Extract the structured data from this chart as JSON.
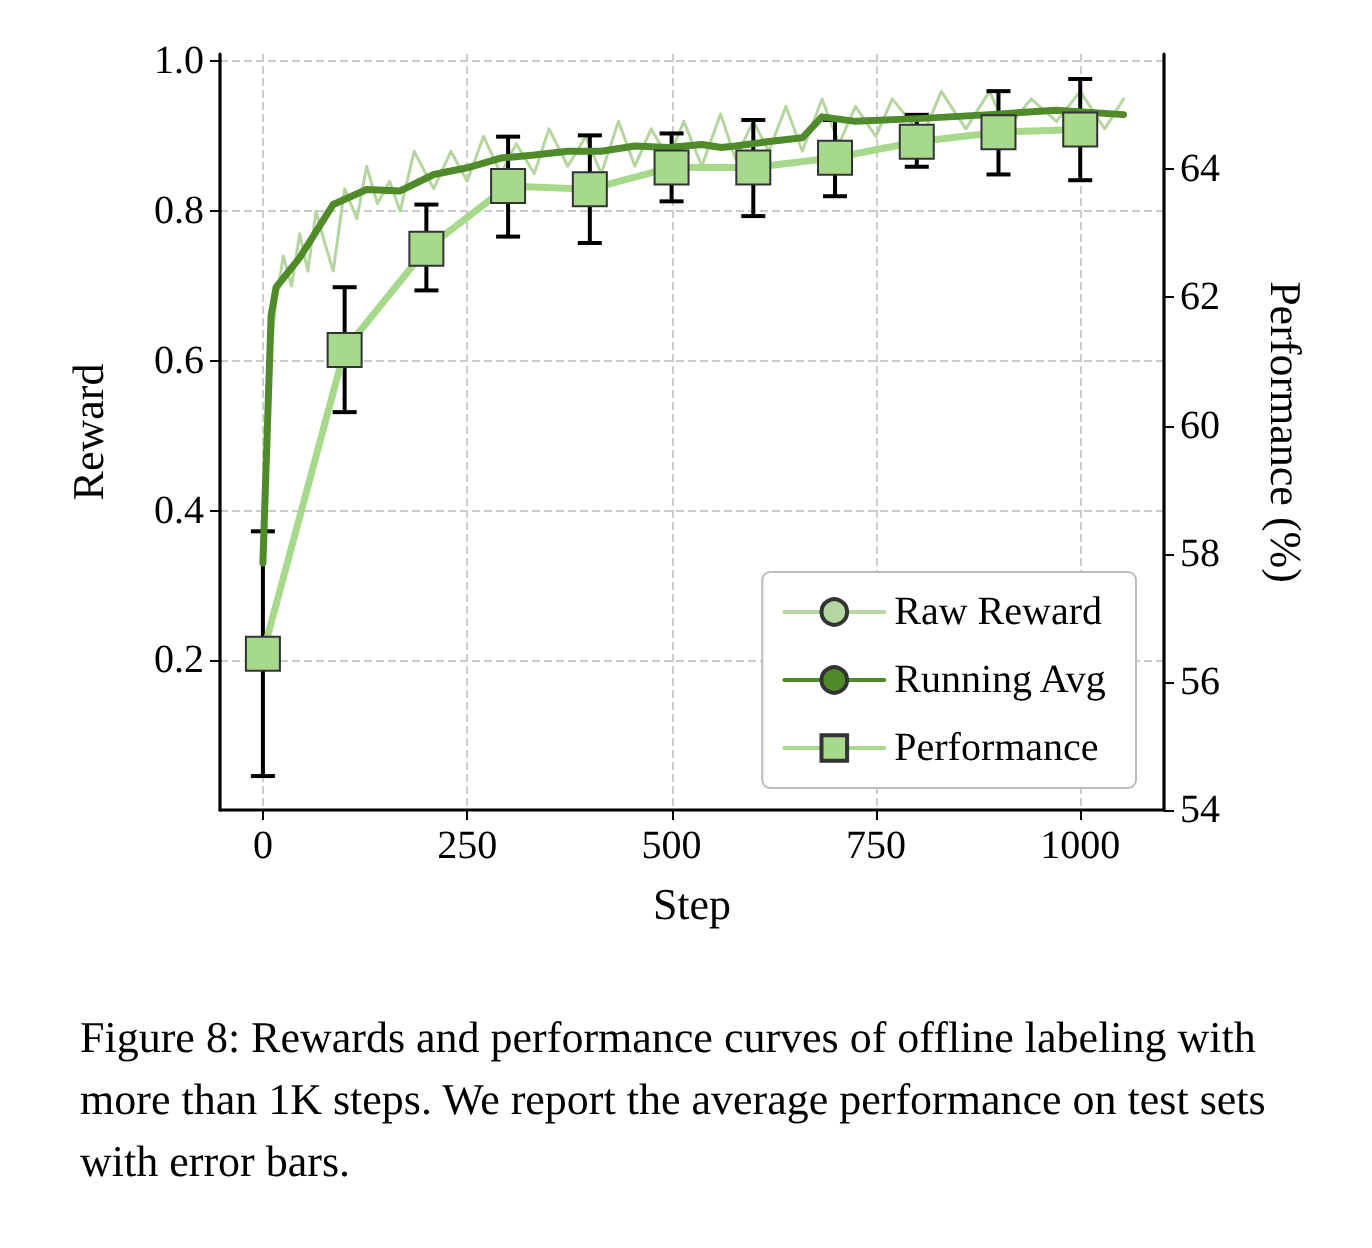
{
  "chart_data": {
    "type": "line",
    "xlabel": "Step",
    "ylabel": "Reward",
    "y2label": "Performance (%)",
    "xlim": [
      -52.5,
      1102.5
    ],
    "xticks": [
      0,
      250,
      500,
      750,
      1000
    ],
    "ylim": [
      0,
      1.01
    ],
    "yticks": [
      0.2,
      0.4,
      0.6,
      0.8,
      {
        "value": 1,
        "label": "1.0"
      }
    ],
    "y2lim": [
      54,
      65.8
    ],
    "y2ticks": [
      54,
      56,
      58,
      60,
      62,
      64
    ],
    "grid": true,
    "legend": "bottom right",
    "marker": "none",
    "line_style": "solid",
    "series": [
      {
        "name": "Raw Reward",
        "color": "#b5d6a0",
        "x": [
          5,
          10,
          16,
          25,
          35,
          45,
          55,
          65,
          75,
          86,
          100,
          115,
          127,
          140,
          155,
          168,
          185,
          209,
          230,
          250,
          270,
          291,
          310,
          332,
          350,
          373,
          395,
          414,
          435,
          455,
          475,
          496,
          515,
          537,
          560,
          578,
          600,
          619,
          640,
          660,
          684,
          705,
          725,
          750,
          770,
          807,
          830,
          860,
          889,
          910,
          940,
          971,
          1000,
          1030,
          1053
        ],
        "values": [
          0.45,
          0.62,
          0.68,
          0.74,
          0.7,
          0.77,
          0.72,
          0.8,
          0.76,
          0.72,
          0.83,
          0.79,
          0.86,
          0.81,
          0.84,
          0.8,
          0.88,
          0.83,
          0.88,
          0.84,
          0.9,
          0.85,
          0.89,
          0.85,
          0.91,
          0.86,
          0.9,
          0.85,
          0.92,
          0.86,
          0.91,
          0.87,
          0.92,
          0.86,
          0.93,
          0.87,
          0.92,
          0.88,
          0.94,
          0.88,
          0.95,
          0.89,
          0.94,
          0.9,
          0.95,
          0.9,
          0.96,
          0.91,
          0.96,
          0.91,
          0.95,
          0.92,
          0.96,
          0.91,
          0.95
        ]
      },
      {
        "name": "Running Avg",
        "color": "#4f8a2b",
        "x": [
          0,
          10,
          16,
          45,
          86,
          127,
          168,
          209,
          250,
          291,
          332,
          373,
          414,
          455,
          496,
          537,
          561,
          578,
          619,
          660,
          684,
          725,
          807,
          889,
          971,
          1053
        ],
        "values": [
          0.33,
          0.66,
          0.698,
          0.738,
          0.809,
          0.829,
          0.827,
          0.849,
          0.858,
          0.871,
          0.875,
          0.88,
          0.88,
          0.887,
          0.885,
          0.889,
          0.885,
          0.887,
          0.893,
          0.898,
          0.926,
          0.92,
          0.924,
          0.929,
          0.935,
          0.929
        ]
      },
      {
        "name": "Performance",
        "color": "#a6d98c",
        "axis": "y2",
        "marker": "square",
        "x": [
          0,
          100,
          200,
          300,
          400,
          500,
          600,
          700,
          800,
          900,
          1000
        ],
        "values": [
          56.44,
          61.18,
          62.76,
          63.74,
          63.69,
          64.03,
          64.03,
          64.18,
          64.43,
          64.58,
          64.62
        ],
        "errors": [
          [
            54.53,
            58.35
          ],
          [
            60.21,
            62.16
          ],
          [
            62.11,
            63.45
          ],
          [
            62.95,
            64.51
          ],
          [
            62.85,
            64.53
          ],
          [
            63.5,
            64.56
          ],
          [
            63.27,
            64.77
          ],
          [
            63.58,
            64.77
          ],
          [
            64.04,
            64.85
          ],
          [
            63.92,
            65.22
          ],
          [
            63.83,
            65.41
          ]
        ]
      }
    ],
    "annotations": [
      "Figure 8: Rewards and performance curves of offline labeling with more than 1K steps. We report the average performance on test sets with error bars."
    ]
  }
}
